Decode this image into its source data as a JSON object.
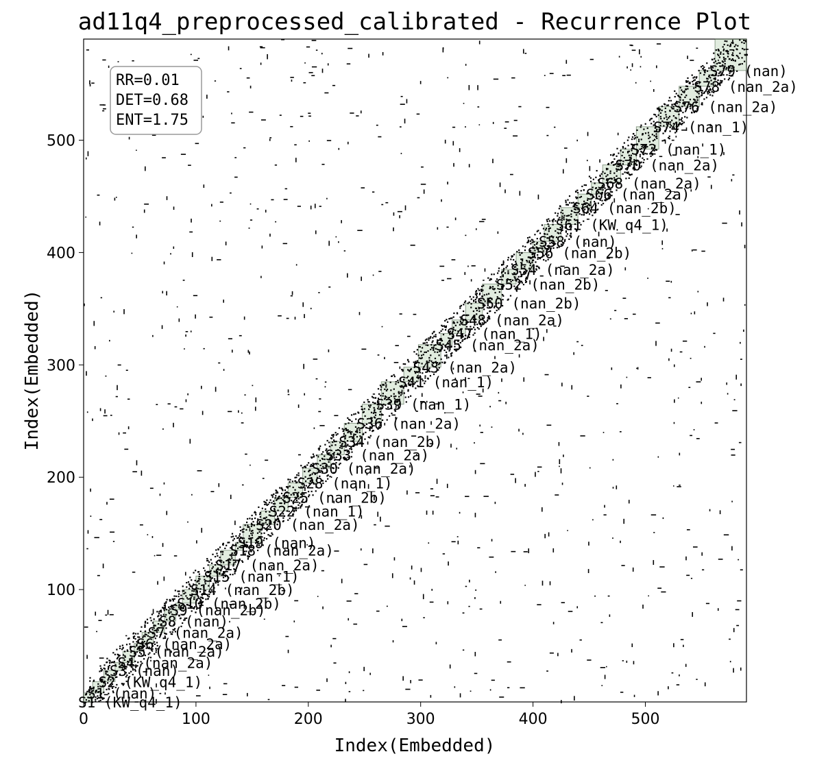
{
  "chart_data": {
    "type": "heatmap",
    "title": "ad11q4_preprocessed_calibrated - Recurrence Plot",
    "xlabel": "Index(Embedded)",
    "ylabel": "Index(Embedded)",
    "xlim": [
      0,
      590
    ],
    "ylim": [
      0,
      590
    ],
    "x_ticks": [
      0,
      100,
      200,
      300,
      400,
      500
    ],
    "y_ticks": [
      100,
      200,
      300,
      400,
      500
    ],
    "grid": false,
    "colors": {
      "recurrence": "#000000",
      "segment_fill": "#a9c9a4",
      "background": "#ffffff"
    },
    "metrics": [
      {
        "label": "RR=0.01"
      },
      {
        "label": "DET=0.68"
      },
      {
        "label": "ENT=1.75"
      }
    ],
    "segment_labels": [
      {
        "index": 0,
        "text": "S1 (KW_q4_1)"
      },
      {
        "index": 8,
        "text": "S1 (nan)"
      },
      {
        "index": 18,
        "text": "S2 (KW_q4_1)"
      },
      {
        "index": 28,
        "text": "S3 (nan)"
      },
      {
        "index": 35,
        "text": "S4 (nan_2a)"
      },
      {
        "index": 45,
        "text": "S5 (nan_2a)"
      },
      {
        "index": 52,
        "text": "S6 (nan_2a)"
      },
      {
        "index": 62,
        "text": "S7 (nan_2a)"
      },
      {
        "index": 72,
        "text": "S8 (nan)"
      },
      {
        "index": 82,
        "text": "S9 (nan_2b)"
      },
      {
        "index": 88,
        "text": "S10 (nan_2b)"
      },
      {
        "index": 100,
        "text": "S14 (nan_2b)"
      },
      {
        "index": 112,
        "text": "S15 (nan_1)"
      },
      {
        "index": 122,
        "text": "S17 (nan_2a)"
      },
      {
        "index": 135,
        "text": "S18 (nan_2a)"
      },
      {
        "index": 142,
        "text": "S19 (nan)"
      },
      {
        "index": 158,
        "text": "S20 (nan_2a)"
      },
      {
        "index": 170,
        "text": "S22 (nan_1)"
      },
      {
        "index": 182,
        "text": "S25 (nan_2b)"
      },
      {
        "index": 195,
        "text": "S28 (nan_1)"
      },
      {
        "index": 208,
        "text": "S30 (nan_2a)"
      },
      {
        "index": 220,
        "text": "S33 (nan_2a)"
      },
      {
        "index": 232,
        "text": "S34 (nan_2b)"
      },
      {
        "index": 248,
        "text": "S36 (nan_2a)"
      },
      {
        "index": 265,
        "text": "S39 (nan_1)"
      },
      {
        "index": 285,
        "text": "S41 (nan_1)"
      },
      {
        "index": 298,
        "text": "S43 (nan_2a)"
      },
      {
        "index": 318,
        "text": "S45 (nan_2a)"
      },
      {
        "index": 328,
        "text": "S47 (nan_1)"
      },
      {
        "index": 340,
        "text": "S48 (nan_2a)"
      },
      {
        "index": 355,
        "text": "S50 (nan_2b)"
      },
      {
        "index": 372,
        "text": "S52 (nan_2b)"
      },
      {
        "index": 385,
        "text": "S54 (nan_2a)"
      },
      {
        "index": 400,
        "text": "S56 (nan_2b)"
      },
      {
        "index": 410,
        "text": "S58 (nan)"
      },
      {
        "index": 425,
        "text": "S61 (KW_q4_1)"
      },
      {
        "index": 440,
        "text": "S64 (nan_2b)"
      },
      {
        "index": 452,
        "text": "S66 (nan_2a)"
      },
      {
        "index": 462,
        "text": "S68 (nan_2a)"
      },
      {
        "index": 478,
        "text": "S70 (nan_2a)"
      },
      {
        "index": 492,
        "text": "S72 (nan_1)"
      },
      {
        "index": 512,
        "text": "S74 (nan_1)"
      },
      {
        "index": 530,
        "text": "S76 (nan_2a)"
      },
      {
        "index": 548,
        "text": "S78 (nan_2a)"
      },
      {
        "index": 562,
        "text": "S79 (nan)"
      }
    ]
  }
}
